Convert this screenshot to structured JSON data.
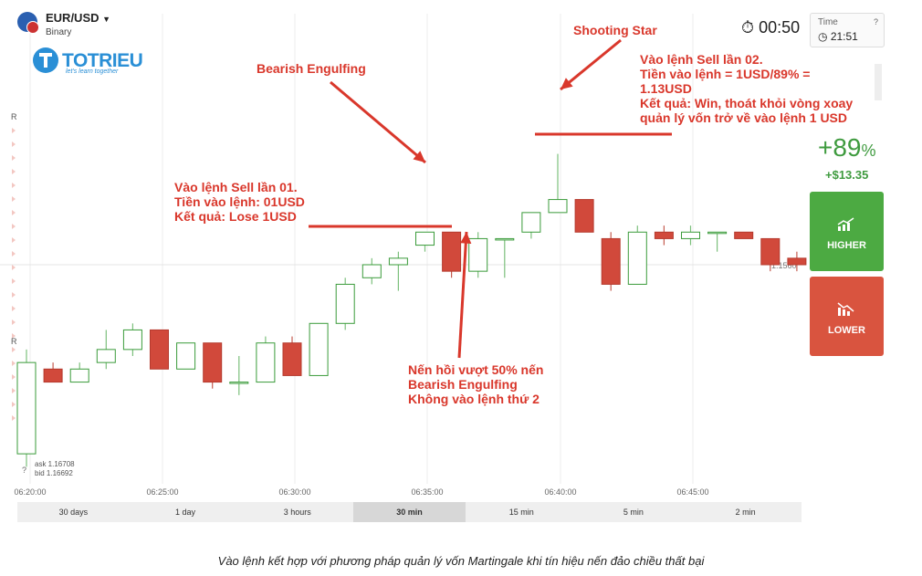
{
  "asset": {
    "pair": "EUR/USD",
    "type": "Binary"
  },
  "brand": {
    "name": "TOTRIEU",
    "tagline": "let's learn together"
  },
  "timer": "00:50",
  "time_box": {
    "label": "Time",
    "value": "21:51",
    "help": "?"
  },
  "payout": {
    "percent": "+89",
    "unit": "%",
    "profit": "+$13.35"
  },
  "buttons": {
    "higher": "HIGHER",
    "lower": "LOWER"
  },
  "price_label": "1.1560",
  "ask_bid": {
    "ask": "ask 1.16708",
    "bid": "bid 1.16692"
  },
  "side_markers": {
    "upper": "R",
    "lower": "R"
  },
  "x_ticks": [
    "06:20:00",
    "06:25:00",
    "06:30:00",
    "06:35:00",
    "06:40:00",
    "06:45:00"
  ],
  "timeframes": [
    "30 days",
    "1 day",
    "3 hours",
    "30 min",
    "15 min",
    "5 min",
    "2 min"
  ],
  "active_timeframe": "30 min",
  "annotations": {
    "sell1": [
      "Vào lệnh Sell lần 01.",
      "Tiền vào lệnh: 01USD",
      "Kết quả: Lose 1USD"
    ],
    "bearish": "Bearish Engulfing",
    "shooting": "Shooting Star",
    "sell2": [
      "Vào lệnh Sell lần 02.",
      "Tiền vào lệnh = 1USD/89% =",
      "1.13USD",
      "Kết quả: Win, thoát khỏi vòng xoay",
      "quản lý vốn trở về vào lệnh 1 USD"
    ],
    "retrace": [
      "Nến hồi vượt 50% nến",
      "Bearish Engulfing",
      "Không vào lệnh thứ 2"
    ]
  },
  "caption": "Vào lệnh kết hợp với phương pháp quản lý vốn Martingale khi tín hiệu nến đảo chiều thất bại",
  "colors": {
    "bull_stroke": "#3a9b3a",
    "bear_fill": "#d1493b",
    "annotation": "#d9372b",
    "higher": "#4caa42",
    "lower": "#d9543f"
  },
  "chart_data": {
    "type": "candlestick",
    "price_range": [
      1.1525,
      1.1595
    ],
    "candles": [
      {
        "o": 1.1531,
        "h": 1.1547,
        "l": 1.1529,
        "c": 1.1545
      },
      {
        "o": 1.1544,
        "h": 1.1545,
        "l": 1.1542,
        "c": 1.1542
      },
      {
        "o": 1.1542,
        "h": 1.1545,
        "l": 1.1542,
        "c": 1.1544
      },
      {
        "o": 1.1545,
        "h": 1.155,
        "l": 1.1544,
        "c": 1.1547
      },
      {
        "o": 1.1547,
        "h": 1.1551,
        "l": 1.1546,
        "c": 1.155
      },
      {
        "o": 1.155,
        "h": 1.155,
        "l": 1.1544,
        "c": 1.1544
      },
      {
        "o": 1.1544,
        "h": 1.1548,
        "l": 1.1544,
        "c": 1.1548
      },
      {
        "o": 1.1548,
        "h": 1.1548,
        "l": 1.1541,
        "c": 1.1542
      },
      {
        "o": 1.1542,
        "h": 1.1546,
        "l": 1.154,
        "c": 1.1542
      },
      {
        "o": 1.1542,
        "h": 1.1549,
        "l": 1.1542,
        "c": 1.1548
      },
      {
        "o": 1.1548,
        "h": 1.1549,
        "l": 1.1543,
        "c": 1.1543
      },
      {
        "o": 1.1543,
        "h": 1.1551,
        "l": 1.1543,
        "c": 1.1551
      },
      {
        "o": 1.1551,
        "h": 1.1558,
        "l": 1.155,
        "c": 1.1557
      },
      {
        "o": 1.1558,
        "h": 1.1561,
        "l": 1.1557,
        "c": 1.156
      },
      {
        "o": 1.156,
        "h": 1.1562,
        "l": 1.1556,
        "c": 1.1561
      },
      {
        "o": 1.1563,
        "h": 1.1565,
        "l": 1.1562,
        "c": 1.1565
      },
      {
        "o": 1.1565,
        "h": 1.1565,
        "l": 1.1558,
        "c": 1.1559
      },
      {
        "o": 1.1559,
        "h": 1.1565,
        "l": 1.1558,
        "c": 1.1564
      },
      {
        "o": 1.1564,
        "h": 1.1564,
        "l": 1.1558,
        "c": 1.1564
      },
      {
        "o": 1.1565,
        "h": 1.1568,
        "l": 1.1564,
        "c": 1.1568
      },
      {
        "o": 1.1568,
        "h": 1.1577,
        "l": 1.1568,
        "c": 1.157
      },
      {
        "o": 1.157,
        "h": 1.157,
        "l": 1.1565,
        "c": 1.1565
      },
      {
        "o": 1.1564,
        "h": 1.1565,
        "l": 1.1556,
        "c": 1.1557
      },
      {
        "o": 1.1557,
        "h": 1.1566,
        "l": 1.1557,
        "c": 1.1565
      },
      {
        "o": 1.1565,
        "h": 1.1566,
        "l": 1.1563,
        "c": 1.1564
      },
      {
        "o": 1.1564,
        "h": 1.1566,
        "l": 1.1563,
        "c": 1.1565
      },
      {
        "o": 1.1565,
        "h": 1.1565,
        "l": 1.1562,
        "c": 1.1565
      },
      {
        "o": 1.1565,
        "h": 1.1565,
        "l": 1.1564,
        "c": 1.1564
      },
      {
        "o": 1.1564,
        "h": 1.1564,
        "l": 1.1559,
        "c": 1.156
      },
      {
        "o": 1.1561,
        "h": 1.1562,
        "l": 1.1559,
        "c": 1.156
      }
    ]
  }
}
